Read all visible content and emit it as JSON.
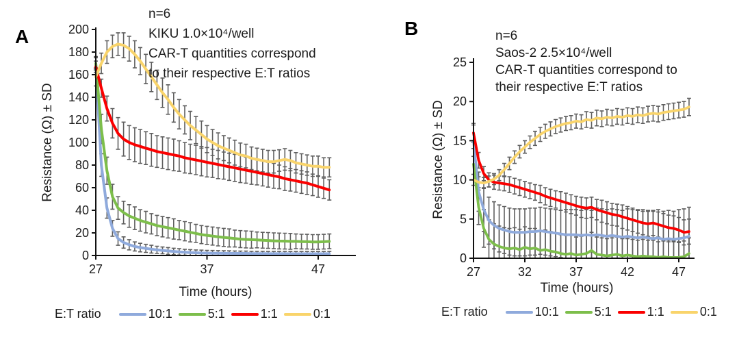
{
  "figure": {
    "background": "#ffffff",
    "text_color": "#1b1b1b",
    "axis_color": "#111111"
  },
  "legend_label": "E:T ratio",
  "chart_data": [
    {
      "panel": "A",
      "type": "line",
      "title_lines": [
        "n=6",
        "KIKU 1.0×10⁴/well",
        "CAR-T quantities correspond",
        "to their respective E:T ratios"
      ],
      "xlabel": "Time (hours)",
      "ylabel": "Resistance (Ω) ± SD",
      "x_start": 27,
      "x_step": 0.5,
      "xlim": [
        27,
        47
      ],
      "ylim": [
        0,
        200
      ],
      "xticks": [
        27,
        37,
        47
      ],
      "yticks": [
        0,
        20,
        40,
        60,
        80,
        100,
        120,
        140,
        160,
        180,
        200
      ],
      "error_color": "#5f5f5f",
      "series": [
        {
          "name": "10:1",
          "color": "#8FAADC",
          "values": [
            170,
            80,
            42,
            24,
            15,
            11.5,
            9.5,
            8,
            7,
            6.3,
            5.6,
            5,
            4.5,
            4,
            3.6,
            3.2,
            2.9,
            2.6,
            2.4,
            2.2,
            2.1,
            2,
            2,
            1.9,
            1.9,
            1.8,
            1.8,
            1.8,
            1.7,
            1.7,
            1.7,
            1.6,
            1.6,
            1.6,
            1.6,
            1.5,
            1.5,
            1.5,
            1.5,
            1.5,
            1.5,
            1.5,
            1.6
          ],
          "sd": [
            5,
            10,
            9,
            7,
            6,
            5,
            4.5,
            4,
            3.8,
            3.6,
            3.4,
            3.2,
            3,
            3,
            2.8,
            2.8,
            2.6,
            2.6,
            2.5,
            2.5,
            2.4,
            2.4,
            2.3,
            2.3,
            2.2,
            2.2,
            2.1,
            2.1,
            2,
            2,
            2,
            2,
            2,
            2,
            2,
            2,
            2,
            2,
            2,
            2,
            2,
            2,
            2
          ]
        },
        {
          "name": "5:1",
          "color": "#7DBE4B",
          "values": [
            170,
            112,
            75,
            52,
            42,
            38,
            35,
            33,
            31,
            29.5,
            28,
            26.5,
            25.5,
            24.5,
            23.5,
            22.5,
            21.5,
            20.5,
            19.5,
            18.5,
            17.8,
            17.2,
            16.5,
            16,
            15.5,
            15,
            14.5,
            14.2,
            14,
            13.8,
            13.5,
            13.3,
            13,
            12.8,
            12.7,
            12.5,
            12.5,
            12.3,
            12.2,
            12,
            12,
            12.2,
            12.5
          ],
          "sd": [
            6,
            13,
            12,
            11,
            10,
            10,
            10,
            10,
            9.5,
            9.5,
            9,
            9,
            9,
            9,
            9,
            8.5,
            8.5,
            8.5,
            8,
            8,
            8,
            8,
            8,
            8,
            8,
            7.5,
            7.5,
            7.5,
            7.5,
            7,
            7,
            7,
            7,
            7,
            7,
            7,
            6.5,
            6.5,
            6.5,
            6.5,
            6.5,
            6.5,
            6.5
          ]
        },
        {
          "name": "1:1",
          "color": "#FA0000",
          "values": [
            167,
            148,
            130,
            117,
            108,
            103,
            100,
            98,
            96.5,
            95,
            93.5,
            92,
            91,
            90,
            89,
            88,
            86.5,
            85.5,
            84.5,
            83.5,
            82.5,
            81.5,
            80.5,
            79.5,
            78.5,
            77.5,
            76.5,
            75.5,
            74.5,
            73.5,
            72.5,
            71.5,
            70.5,
            69.5,
            68,
            67,
            66,
            65,
            64,
            62.5,
            61,
            59.5,
            58
          ],
          "sd": [
            5,
            8,
            11,
            13,
            14,
            15,
            15,
            15,
            15,
            14.5,
            14.5,
            14,
            14,
            14,
            14,
            13.5,
            13.5,
            13,
            13,
            13,
            13,
            12.5,
            12.5,
            12,
            12,
            12,
            12,
            11.5,
            11.5,
            11,
            11,
            11,
            11,
            10.5,
            10.5,
            10,
            10,
            10,
            10,
            9.5,
            9.5,
            9,
            9
          ]
        },
        {
          "name": "0:1",
          "color": "#F9D46B",
          "values": [
            158,
            170,
            180,
            185,
            187,
            186,
            183,
            178,
            172,
            165,
            158,
            151,
            144,
            138,
            131,
            125,
            120,
            115,
            111,
            107,
            103,
            100,
            97,
            95,
            93,
            91,
            89,
            88,
            86,
            85,
            84,
            83,
            83,
            84,
            85,
            84,
            82,
            81,
            80,
            79,
            79,
            78,
            78
          ],
          "sd": [
            8,
            9,
            10,
            10,
            10,
            11,
            11,
            12,
            12,
            13,
            13,
            13,
            13,
            13,
            13,
            13,
            12.5,
            12.5,
            12,
            12,
            12,
            11.5,
            11.5,
            11,
            11,
            11,
            10.5,
            10.5,
            10,
            10,
            10,
            10,
            10,
            9.5,
            9.5,
            9,
            9,
            9,
            9,
            9,
            9,
            8.5,
            8.5
          ]
        }
      ]
    },
    {
      "panel": "B",
      "type": "line",
      "title_lines": [
        "n=6",
        "Saos-2 2.5×10⁴/well",
        "CAR-T quantities correspond to",
        "their respective E:T ratios"
      ],
      "xlabel": "Time (hours)",
      "ylabel": "Resistance (Ω) ± SD",
      "x_start": 27,
      "x_step": 0.5,
      "xlim": [
        27,
        47
      ],
      "ylim": [
        0,
        25
      ],
      "xticks": [
        27,
        32,
        37,
        42,
        47
      ],
      "yticks": [
        0,
        5,
        10,
        15,
        20,
        25
      ],
      "error_color": "#5f5f5f",
      "series": [
        {
          "name": "10:1",
          "color": "#8FAADC",
          "values": [
            15,
            8.5,
            6.2,
            4.8,
            4.2,
            3.8,
            3.6,
            3.4,
            3.3,
            3.3,
            3.3,
            3.4,
            3.4,
            3.5,
            3.4,
            3.3,
            3.2,
            3.1,
            3,
            3,
            3,
            2.9,
            3,
            2.9,
            3,
            2.9,
            2.8,
            2.9,
            2.8,
            2.7,
            2.8,
            2.7,
            2.6,
            2.7,
            2.6,
            2.5,
            2.6,
            2.4,
            2.5,
            2.4,
            2.5,
            2.6,
            2.8
          ],
          "sd": [
            2,
            2.5,
            2.8,
            3,
            3,
            3,
            3,
            3,
            3,
            3,
            3,
            3,
            3,
            3,
            3,
            3,
            3,
            3,
            3.2,
            3.2,
            3.2,
            3.2,
            3.2,
            3.2,
            3.4,
            3.4,
            3.4,
            3.4,
            3.4,
            3.4,
            3.5,
            3.5,
            3.5,
            3.5,
            3.5,
            3.5,
            3.6,
            3.6,
            3.6,
            3.6,
            3.7,
            3.7,
            3.7
          ]
        },
        {
          "name": "5:1",
          "color": "#7DBE4B",
          "values": [
            12,
            6.5,
            3.8,
            2.4,
            1.8,
            1.5,
            1.3,
            1.2,
            1.3,
            1.1,
            1.4,
            1.2,
            1.3,
            1,
            1.1,
            0.9,
            0.8,
            0.6,
            0.5,
            0.6,
            0.4,
            0.5,
            0.6,
            1,
            0.5,
            0.4,
            0.3,
            0.4,
            0.5,
            0.3,
            0.4,
            0.3,
            0.2,
            0.3,
            0.2,
            0.2,
            0.1,
            0.2,
            0.1,
            0.1,
            0.1,
            0.2,
            0.6
          ],
          "sd": [
            2,
            2.2,
            2.4,
            2.5,
            2.6,
            2.6,
            2.6,
            2.6,
            2.6,
            2.6,
            2.6,
            2.6,
            2.5,
            2.5,
            2.5,
            2.5,
            2.4,
            2.4,
            2.4,
            2.4,
            2.3,
            2.3,
            2.3,
            2.3,
            2.2,
            2.2,
            2.2,
            2.2,
            2.2,
            2.2,
            2.1,
            2.1,
            2.1,
            2.1,
            2.1,
            2.1,
            2,
            2,
            2,
            2,
            2,
            2,
            2
          ]
        },
        {
          "name": "1:1",
          "color": "#FA0000",
          "values": [
            16,
            12.5,
            10.8,
            10,
            9.7,
            9.6,
            9.5,
            9.4,
            9.2,
            9,
            8.8,
            8.6,
            8.4,
            8.2,
            7.9,
            7.7,
            7.5,
            7.3,
            7.1,
            6.9,
            6.7,
            6.5,
            6.4,
            6.5,
            6.2,
            6,
            5.8,
            5.6,
            5.5,
            5.3,
            5.1,
            4.9,
            4.7,
            4.5,
            4.4,
            4.5,
            4.3,
            4.1,
            3.9,
            3.8,
            3.6,
            3.3,
            3.4
          ],
          "sd": [
            1.2,
            1,
            0.9,
            0.9,
            0.9,
            0.9,
            0.9,
            1,
            1,
            1,
            1,
            1,
            1,
            1.1,
            1.1,
            1.1,
            1.1,
            1.2,
            1.2,
            1.2,
            1.2,
            1.3,
            1.3,
            1.3,
            1.3,
            1.4,
            1.4,
            1.4,
            1.4,
            1.5,
            1.5,
            1.5,
            1.5,
            1.5,
            1.6,
            1.6,
            1.6,
            1.6,
            1.6,
            1.6,
            1.6,
            1.6,
            1.6
          ]
        },
        {
          "name": "0:1",
          "color": "#F9D46B",
          "values": [
            10,
            9.7,
            9.6,
            9.8,
            10.1,
            10.6,
            11.3,
            12.1,
            12.9,
            13.6,
            14.2,
            14.8,
            15.3,
            15.8,
            16.2,
            16.5,
            16.8,
            17,
            17.2,
            17.3,
            17.5,
            17.4,
            17.7,
            17.6,
            17.9,
            17.8,
            18,
            17.9,
            18.1,
            18,
            18.2,
            18.1,
            18.3,
            18.2,
            18.4,
            18.5,
            18.4,
            18.6,
            18.7,
            18.8,
            18.9,
            19,
            19.3
          ],
          "sd": [
            0.7,
            0.7,
            0.7,
            0.7,
            0.7,
            0.7,
            0.8,
            0.8,
            0.8,
            0.8,
            0.8,
            0.8,
            0.9,
            0.9,
            0.9,
            0.9,
            0.9,
            0.9,
            0.9,
            0.9,
            0.9,
            0.9,
            1,
            1,
            1,
            1,
            1,
            1,
            1,
            1,
            1,
            1,
            1,
            1,
            1,
            1,
            1,
            1,
            1,
            1,
            1,
            1,
            1.1
          ]
        }
      ]
    }
  ]
}
